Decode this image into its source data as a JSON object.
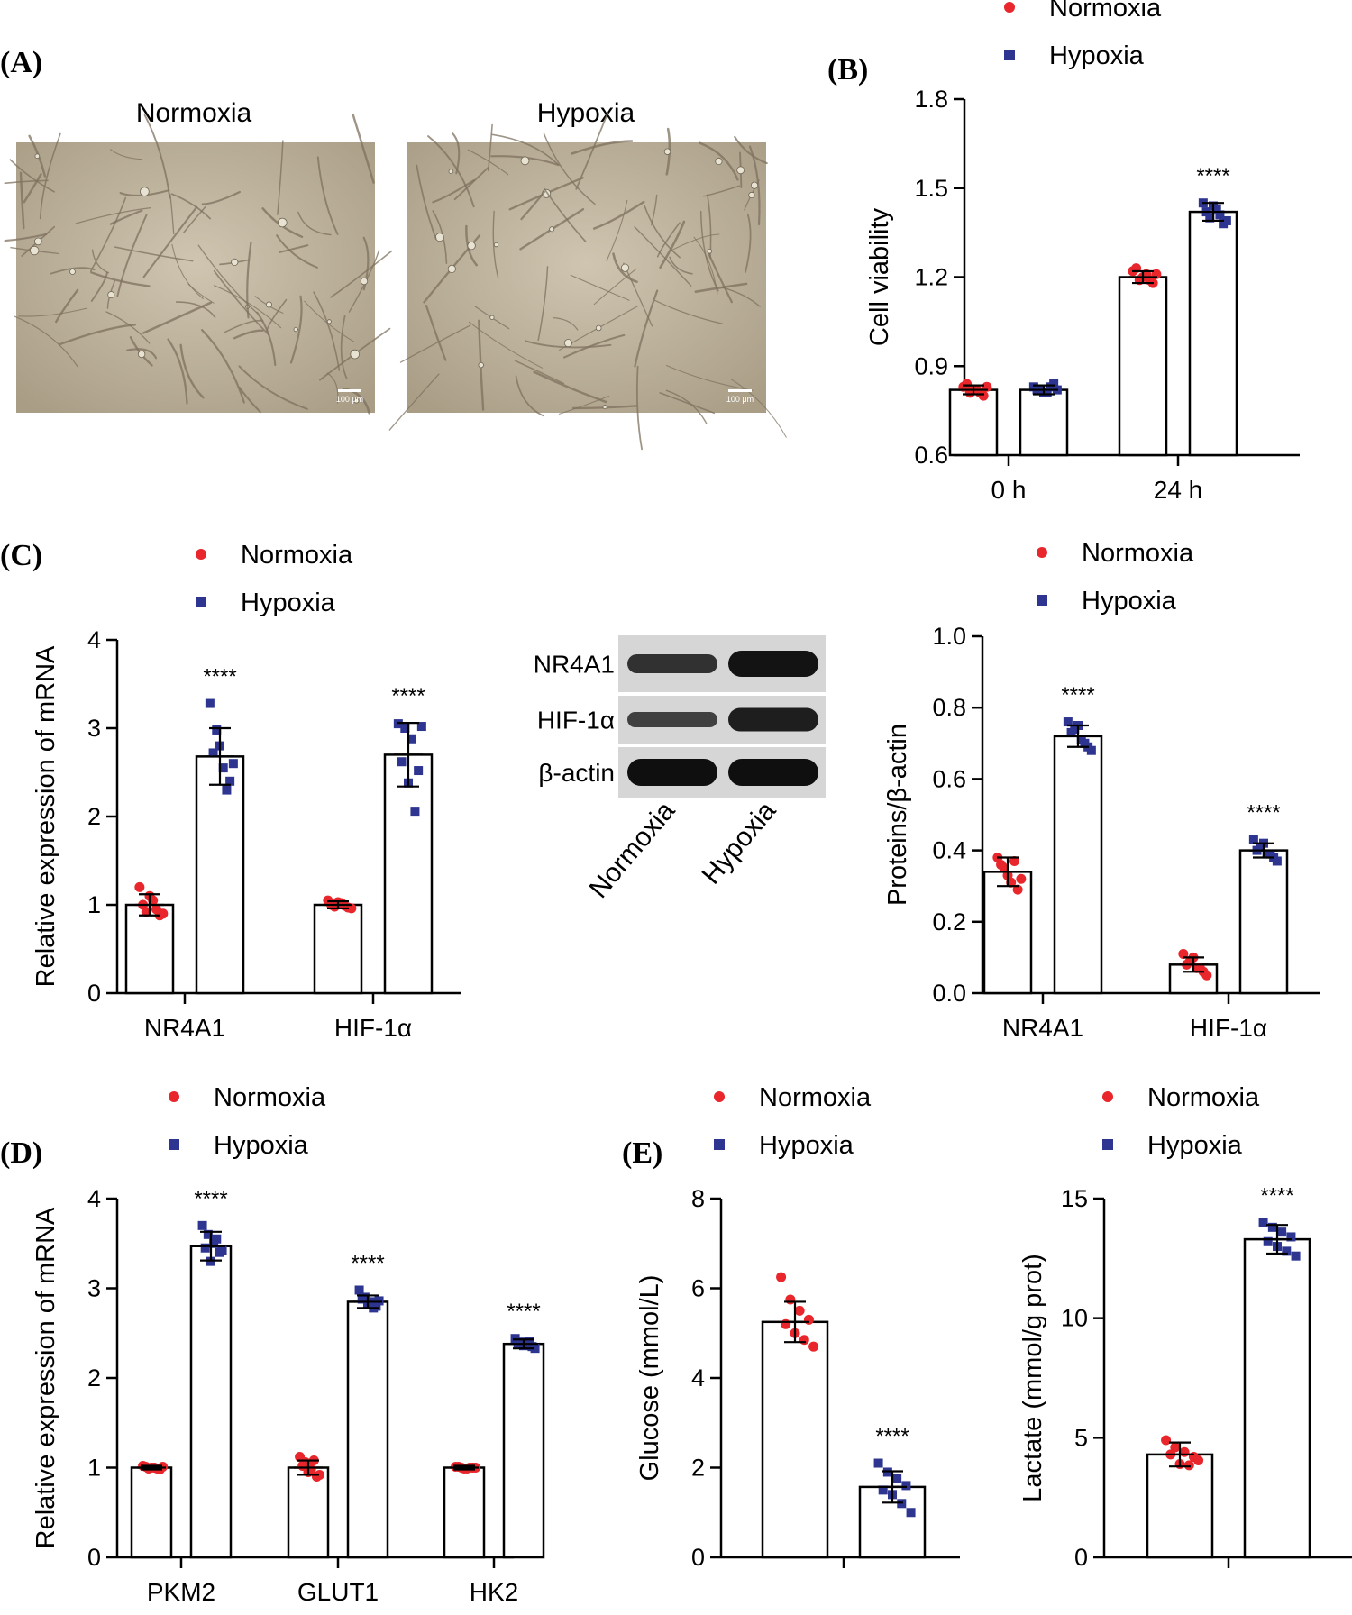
{
  "colors": {
    "normoxia": "#e8262b",
    "hypoxia": "#2d3590",
    "axis": "#000000",
    "micro_bg": "#b8ac94"
  },
  "panels": {
    "A": {
      "label": "(A)",
      "image_titles": [
        "Normoxia",
        "Hypoxia"
      ],
      "scale_bar": "100 μm"
    },
    "B": {
      "label": "(B)"
    },
    "C": {
      "label": "(C)"
    },
    "D": {
      "label": "(D)"
    },
    "E": {
      "label": "(E)"
    }
  },
  "western": {
    "bands": [
      "NR4A1",
      "HIF-1α",
      "β-actin"
    ],
    "lanes": [
      "Normoxia",
      "Hypoxia"
    ],
    "band_intensity": [
      [
        0.55,
        0.95
      ],
      [
        0.35,
        0.8
      ],
      [
        1.0,
        1.0
      ]
    ]
  },
  "chart_data": [
    {
      "id": "B",
      "type": "bar",
      "ylabel": "Cell viability",
      "ylim": [
        0.6,
        1.8
      ],
      "yticks": [
        "0.6",
        "0.9",
        "1.2",
        "1.5",
        "1.8"
      ],
      "tick_values": [
        0.6,
        0.9,
        1.2,
        1.5,
        1.8
      ],
      "categories": [
        "0 h",
        "24 h"
      ],
      "legend": [
        "Normoxia",
        "Hypoxia"
      ],
      "series": [
        {
          "name": "Normoxia",
          "values": [
            0.82,
            1.2
          ],
          "sd": [
            0.015,
            0.02
          ],
          "points": [
            [
              0.83,
              0.81,
              0.82,
              0.8,
              0.84,
              0.82,
              0.81,
              0.83
            ],
            [
              1.22,
              1.19,
              1.21,
              1.18,
              1.23,
              1.2,
              1.19,
              1.21
            ]
          ]
        },
        {
          "name": "Hypoxia",
          "values": [
            0.82,
            1.42
          ],
          "sd": [
            0.015,
            0.03
          ],
          "points": [
            [
              0.83,
              0.82,
              0.81,
              0.84,
              0.82,
              0.81,
              0.83,
              0.82
            ],
            [
              1.45,
              1.4,
              1.43,
              1.38,
              1.42,
              1.44,
              1.41,
              1.39
            ]
          ]
        }
      ],
      "annotations": [
        {
          "category": 1,
          "series": 1,
          "text": "****"
        }
      ]
    },
    {
      "id": "C1",
      "type": "bar",
      "ylabel": "Relative expression of mRNA",
      "ylim": [
        0,
        4
      ],
      "yticks": [
        "0",
        "1",
        "2",
        "3",
        "4"
      ],
      "tick_values": [
        0,
        1,
        2,
        3,
        4
      ],
      "categories": [
        "NR4A1",
        "HIF-1α"
      ],
      "legend": [
        "Normoxia",
        "Hypoxia"
      ],
      "series": [
        {
          "name": "Normoxia",
          "values": [
            1.0,
            1.0
          ],
          "sd": [
            0.12,
            0.04
          ],
          "points": [
            [
              1.2,
              0.92,
              1.05,
              0.88,
              1.0,
              1.1,
              0.95,
              0.9
            ],
            [
              1.05,
              0.98,
              1.02,
              0.97,
              1.0,
              1.03,
              0.99,
              0.96
            ]
          ]
        },
        {
          "name": "Hypoxia",
          "values": [
            2.68,
            2.7
          ],
          "sd": [
            0.32,
            0.36
          ],
          "points": [
            [
              3.28,
              2.98,
              2.55,
              2.4,
              2.72,
              2.8,
              2.3,
              2.6
            ],
            [
              3.05,
              3.0,
              2.88,
              2.52,
              2.62,
              2.38,
              2.06,
              3.02
            ]
          ]
        }
      ],
      "annotations": [
        {
          "category": 0,
          "series": 1,
          "text": "****"
        },
        {
          "category": 1,
          "series": 1,
          "text": "****"
        }
      ]
    },
    {
      "id": "C2",
      "type": "bar",
      "ylabel": "Proteins/β-actin",
      "ylim": [
        0,
        1.0
      ],
      "yticks": [
        "0.0",
        "0.2",
        "0.4",
        "0.6",
        "0.8",
        "1.0"
      ],
      "tick_values": [
        0,
        0.2,
        0.4,
        0.6,
        0.8,
        1.0
      ],
      "categories": [
        "NR4A1",
        "HIF-1α"
      ],
      "legend": [
        "Normoxia",
        "Hypoxia"
      ],
      "series": [
        {
          "name": "Normoxia",
          "values": [
            0.34,
            0.08
          ],
          "sd": [
            0.04,
            0.02
          ],
          "points": [
            [
              0.38,
              0.35,
              0.31,
              0.29,
              0.36,
              0.33,
              0.37,
              0.32
            ],
            [
              0.11,
              0.09,
              0.07,
              0.06,
              0.08,
              0.1,
              0.07,
              0.05
            ]
          ]
        },
        {
          "name": "Hypoxia",
          "values": [
            0.72,
            0.4
          ],
          "sd": [
            0.03,
            0.02
          ],
          "points": [
            [
              0.76,
              0.74,
              0.71,
              0.69,
              0.73,
              0.75,
              0.7,
              0.68
            ],
            [
              0.43,
              0.41,
              0.39,
              0.38,
              0.4,
              0.42,
              0.39,
              0.37
            ]
          ]
        }
      ],
      "annotations": [
        {
          "category": 0,
          "series": 1,
          "text": "****"
        },
        {
          "category": 1,
          "series": 1,
          "text": "****"
        }
      ]
    },
    {
      "id": "D",
      "type": "bar",
      "ylabel": "Relative expression of mRNA",
      "ylim": [
        0,
        4
      ],
      "yticks": [
        "0",
        "1",
        "2",
        "3",
        "4"
      ],
      "tick_values": [
        0,
        1,
        2,
        3,
        4
      ],
      "categories": [
        "PKM2",
        "GLUT1",
        "HK2"
      ],
      "legend": [
        "Normoxia",
        "Hypoxia"
      ],
      "series": [
        {
          "name": "Normoxia",
          "values": [
            1.0,
            1.0,
            1.0
          ],
          "sd": [
            0.02,
            0.08,
            0.02
          ],
          "points": [
            [
              1.02,
              0.99,
              1.0,
              0.98,
              1.01,
              1.0,
              0.99,
              1.01
            ],
            [
              1.12,
              1.06,
              0.98,
              0.9,
              1.02,
              0.95,
              1.08,
              0.92
            ],
            [
              1.01,
              1.0,
              0.99,
              1.0,
              1.01,
              0.99,
              1.0,
              1.0
            ]
          ]
        },
        {
          "name": "Hypoxia",
          "values": [
            3.47,
            2.85,
            2.38
          ],
          "sd": [
            0.16,
            0.07,
            0.05
          ],
          "points": [
            [
              3.7,
              3.6,
              3.5,
              3.4,
              3.45,
              3.3,
              3.55,
              3.42
            ],
            [
              2.98,
              2.9,
              2.85,
              2.8,
              2.88,
              2.82,
              2.78,
              2.86
            ],
            [
              2.44,
              2.4,
              2.38,
              2.35,
              2.39,
              2.36,
              2.41,
              2.33
            ]
          ]
        }
      ],
      "annotations": [
        {
          "category": 0,
          "series": 1,
          "text": "****"
        },
        {
          "category": 1,
          "series": 1,
          "text": "****"
        },
        {
          "category": 2,
          "series": 1,
          "text": "****"
        }
      ]
    },
    {
      "id": "E1",
      "type": "bar",
      "ylabel": "Glucose (mmol/L)",
      "ylim": [
        0,
        8
      ],
      "yticks": [
        "0",
        "2",
        "4",
        "6",
        "8"
      ],
      "tick_values": [
        0,
        2,
        4,
        6,
        8
      ],
      "categories": [
        ""
      ],
      "legend": [
        "Normoxia",
        "Hypoxia"
      ],
      "series": [
        {
          "name": "Normoxia",
          "values": [
            5.25
          ],
          "sd": [
            0.45
          ],
          "points": [
            [
              6.25,
              5.75,
              5.5,
              5.3,
              5.2,
              5.0,
              4.85,
              4.7
            ]
          ]
        },
        {
          "name": "Hypoxia",
          "values": [
            1.57
          ],
          "sd": [
            0.35
          ],
          "points": [
            [
              2.1,
              1.9,
              1.75,
              1.6,
              1.5,
              1.4,
              1.2,
              1.0
            ]
          ]
        }
      ],
      "annotations": [
        {
          "category": 0,
          "series": 1,
          "text": "****"
        }
      ]
    },
    {
      "id": "E2",
      "type": "bar",
      "ylabel": "Lactate (mmol/g prot)",
      "ylim": [
        0,
        15
      ],
      "yticks": [
        "0",
        "5",
        "10",
        "15"
      ],
      "tick_values": [
        0,
        5,
        10,
        15
      ],
      "categories": [
        ""
      ],
      "legend": [
        "Normoxia",
        "Hypoxia"
      ],
      "series": [
        {
          "name": "Normoxia",
          "values": [
            4.3
          ],
          "sd": [
            0.5
          ],
          "points": [
            [
              4.9,
              4.6,
              4.4,
              4.2,
              4.3,
              3.9,
              3.85,
              4.05
            ]
          ]
        },
        {
          "name": "Hypoxia",
          "values": [
            13.3
          ],
          "sd": [
            0.6
          ],
          "points": [
            [
              14.0,
              13.8,
              13.6,
              13.4,
              13.2,
              13.0,
              12.8,
              12.6
            ]
          ]
        }
      ],
      "annotations": [
        {
          "category": 0,
          "series": 1,
          "text": "****"
        }
      ]
    }
  ]
}
